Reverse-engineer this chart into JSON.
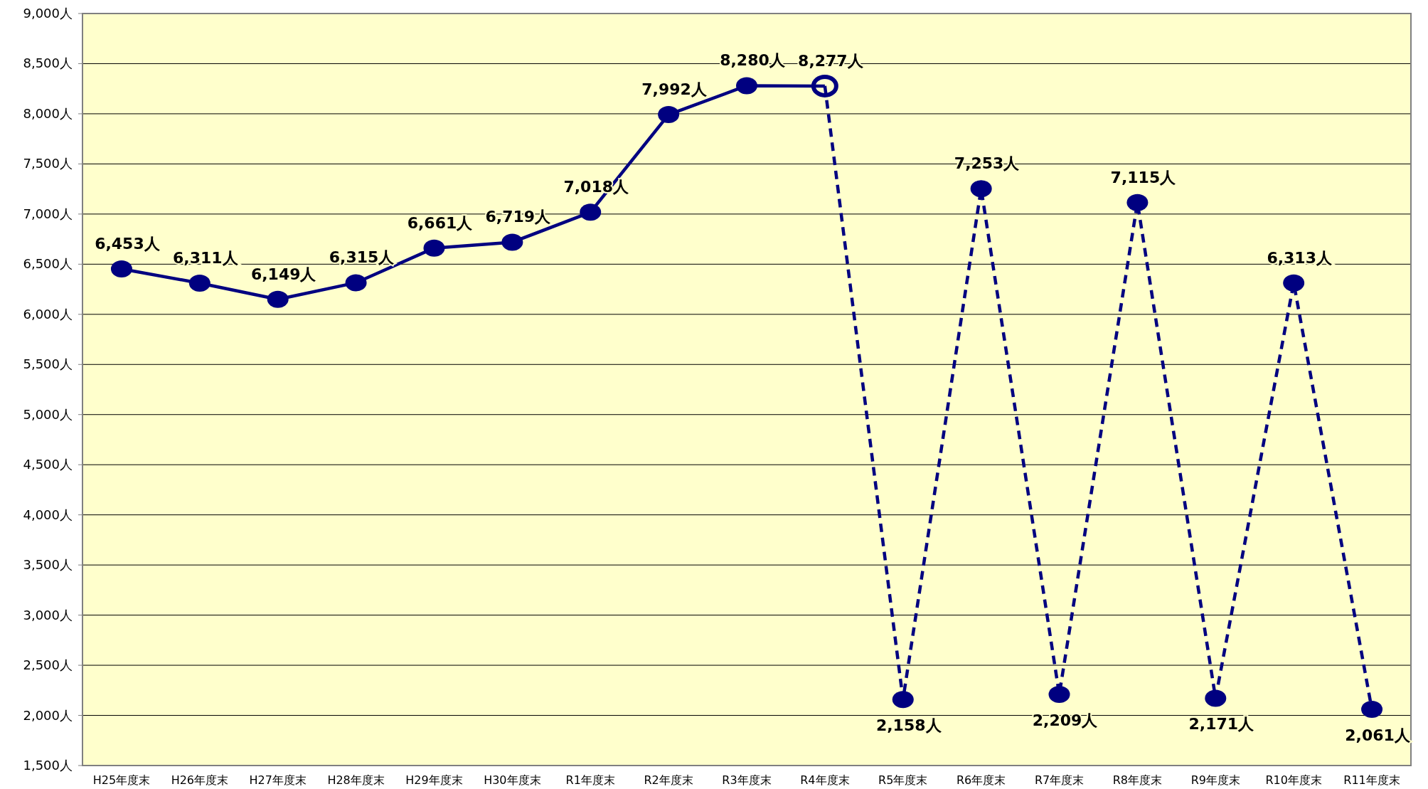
{
  "chart_data": {
    "type": "line",
    "categories": [
      "H25年度末",
      "H26年度末",
      "H27年度末",
      "H28年度末",
      "H29年度末",
      "H30年度末",
      "R1年度末",
      "R2年度末",
      "R3年度末",
      "R4年度末",
      "R5年度末",
      "R6年度末",
      "R7年度末",
      "R8年度末",
      "R9年度末",
      "R10年度末",
      "R11年度末"
    ],
    "series": [
      {
        "color": "#000080",
        "line_style": "solid",
        "values": [
          6453,
          6311,
          6149,
          6315,
          6661,
          6719,
          7018,
          7992,
          8280,
          8277,
          null,
          null,
          null,
          null,
          null,
          null,
          null
        ],
        "value_labels": [
          "6,453人",
          "6,311人",
          "6,149人",
          "6,315人",
          "6,661人",
          "6,719人",
          "7,018人",
          "7,992人",
          "8,280人",
          "8,277人",
          null,
          null,
          null,
          null,
          null,
          null,
          null
        ]
      },
      {
        "color": "#000080",
        "line_style": "dashed",
        "values": [
          null,
          null,
          null,
          null,
          null,
          null,
          null,
          null,
          null,
          8277,
          2158,
          7253,
          2209,
          7115,
          2171,
          6313,
          2061
        ],
        "value_labels": [
          null,
          null,
          null,
          null,
          null,
          null,
          null,
          null,
          null,
          null,
          "2,158人",
          "7,253人",
          "2,209人",
          "7,115人",
          "2,171人",
          "6,313人",
          "2,061人"
        ]
      }
    ],
    "ylim": [
      1500,
      9000
    ],
    "yticks": [
      {
        "value": 1500,
        "label": "1,500人"
      },
      {
        "value": 2000,
        "label": "2,000人"
      },
      {
        "value": 2500,
        "label": "2,500人"
      },
      {
        "value": 3000,
        "label": "3,000人"
      },
      {
        "value": 3500,
        "label": "3,500人"
      },
      {
        "value": 4000,
        "label": "4,000人"
      },
      {
        "value": 4500,
        "label": "4,500人"
      },
      {
        "value": 5000,
        "label": "5,000人"
      },
      {
        "value": 5500,
        "label": "5,500人"
      },
      {
        "value": 6000,
        "label": "6,000人"
      },
      {
        "value": 6500,
        "label": "6,500人"
      },
      {
        "value": 7000,
        "label": "7,000人"
      },
      {
        "value": 7500,
        "label": "7,500人"
      },
      {
        "value": 8000,
        "label": "8,000人"
      },
      {
        "value": 8500,
        "label": "8,500人"
      },
      {
        "value": 9000,
        "label": "9,000人"
      }
    ],
    "grid": "y",
    "marker": "circle"
  }
}
